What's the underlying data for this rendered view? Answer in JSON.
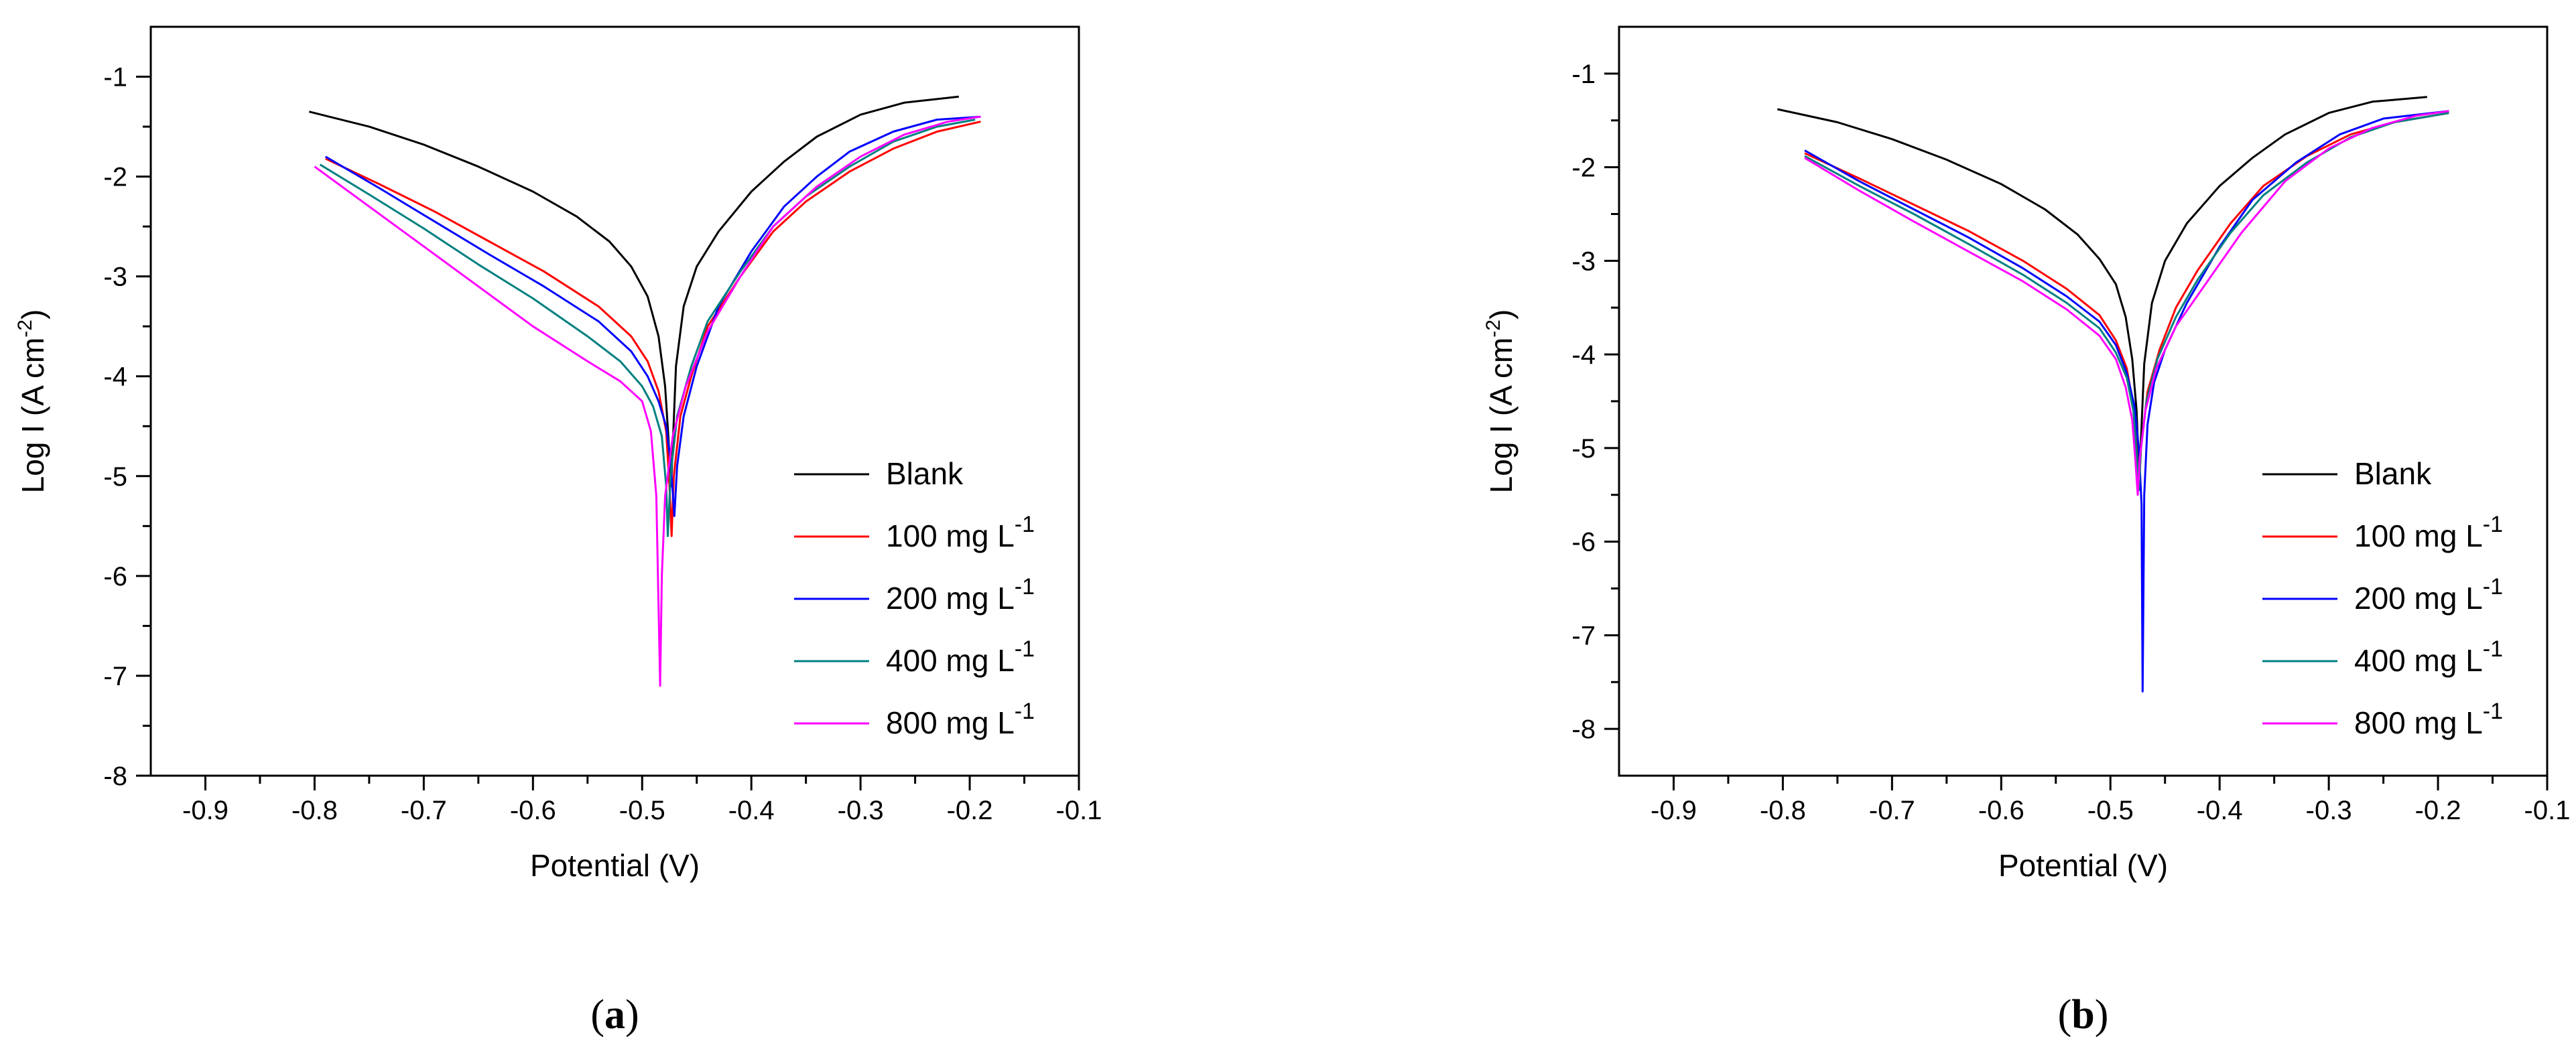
{
  "chart_data": [
    {
      "type": "line",
      "panel_label": {
        "open": "(",
        "letter": "a",
        "close": ")"
      },
      "xlabel": "Potential (V)",
      "ylabel": {
        "main": "Log I (A cm",
        "sup": "-2",
        "close": ")"
      },
      "xlim": [
        -0.95,
        -0.1
      ],
      "ylim": [
        -8,
        -0.5
      ],
      "xticks": [
        "-0.9",
        "-0.8",
        "-0.7",
        "-0.6",
        "-0.5",
        "-0.4",
        "-0.3",
        "-0.2",
        "-0.1"
      ],
      "yticks": [
        "-8",
        "-7",
        "-6",
        "-5",
        "-4",
        "-3",
        "-2",
        "-1"
      ],
      "xtick_values": [
        -0.9,
        -0.8,
        -0.7,
        -0.6,
        -0.5,
        -0.4,
        -0.3,
        -0.2,
        -0.1
      ],
      "ytick_values": [
        -8,
        -7,
        -6,
        -5,
        -4,
        -3,
        -2,
        -1
      ],
      "legend_position": "lower-right",
      "series": [
        {
          "name": "Blank",
          "sup": "",
          "color": "#000000",
          "x": [
            -0.805,
            -0.75,
            -0.7,
            -0.65,
            -0.6,
            -0.56,
            -0.53,
            -0.51,
            -0.495,
            -0.485,
            -0.479,
            -0.476,
            -0.4735,
            -0.472,
            -0.469,
            -0.462,
            -0.45,
            -0.43,
            -0.4,
            -0.37,
            -0.34,
            -0.3,
            -0.26,
            -0.21
          ],
          "y": [
            -1.35,
            -1.5,
            -1.68,
            -1.9,
            -2.15,
            -2.4,
            -2.65,
            -2.9,
            -3.2,
            -3.6,
            -4.1,
            -4.6,
            -5.1,
            -4.7,
            -3.9,
            -3.3,
            -2.9,
            -2.55,
            -2.15,
            -1.85,
            -1.6,
            -1.38,
            -1.26,
            -1.2
          ]
        },
        {
          "name": "100 mg L",
          "sup": "-1",
          "color": "#ff0000",
          "x": [
            -0.79,
            -0.74,
            -0.69,
            -0.64,
            -0.59,
            -0.54,
            -0.51,
            -0.495,
            -0.485,
            -0.478,
            -0.475,
            -0.473,
            -0.471,
            -0.465,
            -0.455,
            -0.44,
            -0.41,
            -0.38,
            -0.35,
            -0.31,
            -0.27,
            -0.23,
            -0.19
          ],
          "y": [
            -1.82,
            -2.08,
            -2.35,
            -2.65,
            -2.95,
            -3.3,
            -3.6,
            -3.85,
            -4.15,
            -4.55,
            -5.1,
            -5.6,
            -5.0,
            -4.4,
            -4.0,
            -3.5,
            -3.0,
            -2.55,
            -2.25,
            -1.95,
            -1.72,
            -1.55,
            -1.45
          ]
        },
        {
          "name": "200 mg L",
          "sup": "-1",
          "color": "#0000ff",
          "x": [
            -0.79,
            -0.74,
            -0.69,
            -0.64,
            -0.59,
            -0.54,
            -0.51,
            -0.495,
            -0.485,
            -0.478,
            -0.474,
            -0.4705,
            -0.468,
            -0.462,
            -0.45,
            -0.43,
            -0.4,
            -0.37,
            -0.34,
            -0.31,
            -0.27,
            -0.23,
            -0.19
          ],
          "y": [
            -1.8,
            -2.12,
            -2.45,
            -2.78,
            -3.1,
            -3.45,
            -3.75,
            -4.0,
            -4.25,
            -4.5,
            -4.85,
            -5.4,
            -4.9,
            -4.4,
            -3.9,
            -3.3,
            -2.75,
            -2.3,
            -2.0,
            -1.75,
            -1.55,
            -1.43,
            -1.4
          ]
        },
        {
          "name": "400 mg L",
          "sup": "-1",
          "color": "#008080",
          "x": [
            -0.795,
            -0.75,
            -0.7,
            -0.65,
            -0.6,
            -0.55,
            -0.52,
            -0.5,
            -0.49,
            -0.482,
            -0.478,
            -0.4765,
            -0.474,
            -0.468,
            -0.455,
            -0.44,
            -0.41,
            -0.38,
            -0.35,
            -0.31,
            -0.27,
            -0.23,
            -0.195
          ],
          "y": [
            -1.88,
            -2.18,
            -2.52,
            -2.88,
            -3.22,
            -3.6,
            -3.85,
            -4.1,
            -4.3,
            -4.6,
            -5.1,
            -5.6,
            -5.0,
            -4.4,
            -3.9,
            -3.45,
            -2.95,
            -2.5,
            -2.2,
            -1.9,
            -1.65,
            -1.5,
            -1.43
          ]
        },
        {
          "name": "800 mg L",
          "sup": "-1",
          "color": "#ff00ff",
          "x": [
            -0.8,
            -0.75,
            -0.7,
            -0.65,
            -0.6,
            -0.55,
            -0.52,
            -0.5,
            -0.492,
            -0.487,
            -0.485,
            -0.4835,
            -0.482,
            -0.479,
            -0.472,
            -0.46,
            -0.44,
            -0.41,
            -0.38,
            -0.34,
            -0.3,
            -0.26,
            -0.22,
            -0.19
          ],
          "y": [
            -1.9,
            -2.3,
            -2.7,
            -3.1,
            -3.5,
            -3.85,
            -4.05,
            -4.25,
            -4.55,
            -5.2,
            -6.3,
            -7.1,
            -6.0,
            -5.2,
            -4.6,
            -4.1,
            -3.55,
            -3.0,
            -2.5,
            -2.1,
            -1.8,
            -1.58,
            -1.45,
            -1.4
          ]
        }
      ]
    },
    {
      "type": "line",
      "panel_label": {
        "open": "(",
        "letter": "b",
        "close": ")"
      },
      "xlabel": "Potential (V)",
      "ylabel": {
        "main": "Log I (A cm",
        "sup": "-2",
        "close": ")"
      },
      "xlim": [
        -0.95,
        -0.1
      ],
      "ylim": [
        -8.5,
        -0.5
      ],
      "xticks": [
        "-0.9",
        "-0.8",
        "-0.7",
        "-0.6",
        "-0.5",
        "-0.4",
        "-0.3",
        "-0.2",
        "-0.1"
      ],
      "yticks": [
        "-8",
        "-7",
        "-6",
        "-5",
        "-4",
        "-3",
        "-2",
        "-1"
      ],
      "xtick_values": [
        -0.9,
        -0.8,
        -0.7,
        -0.6,
        -0.5,
        -0.4,
        -0.3,
        -0.2,
        -0.1
      ],
      "ytick_values": [
        -8,
        -7,
        -6,
        -5,
        -4,
        -3,
        -2,
        -1
      ],
      "legend_position": "lower-right",
      "series": [
        {
          "name": "Blank",
          "sup": "",
          "color": "#000000",
          "x": [
            -0.805,
            -0.75,
            -0.7,
            -0.65,
            -0.6,
            -0.56,
            -0.53,
            -0.51,
            -0.495,
            -0.486,
            -0.48,
            -0.476,
            -0.4735,
            -0.472,
            -0.469,
            -0.462,
            -0.45,
            -0.43,
            -0.4,
            -0.37,
            -0.34,
            -0.3,
            -0.26,
            -0.21
          ],
          "y": [
            -1.38,
            -1.52,
            -1.7,
            -1.92,
            -2.18,
            -2.45,
            -2.72,
            -2.98,
            -3.25,
            -3.6,
            -4.05,
            -4.6,
            -5.35,
            -4.9,
            -4.1,
            -3.45,
            -3.0,
            -2.6,
            -2.2,
            -1.9,
            -1.65,
            -1.42,
            -1.3,
            -1.25
          ]
        },
        {
          "name": "100 mg L",
          "sup": "-1",
          "color": "#ff0000",
          "x": [
            -0.78,
            -0.73,
            -0.68,
            -0.63,
            -0.58,
            -0.54,
            -0.51,
            -0.495,
            -0.485,
            -0.479,
            -0.476,
            -0.474,
            -0.472,
            -0.466,
            -0.455,
            -0.44,
            -0.42,
            -0.39,
            -0.36,
            -0.32,
            -0.28,
            -0.24,
            -0.19
          ],
          "y": [
            -1.85,
            -2.12,
            -2.4,
            -2.68,
            -3.0,
            -3.3,
            -3.58,
            -3.85,
            -4.15,
            -4.55,
            -5.0,
            -5.45,
            -5.0,
            -4.4,
            -3.95,
            -3.5,
            -3.1,
            -2.6,
            -2.2,
            -1.88,
            -1.65,
            -1.52,
            -1.42
          ]
        },
        {
          "name": "200 mg L",
          "sup": "-1",
          "color": "#0000ff",
          "x": [
            -0.78,
            -0.73,
            -0.68,
            -0.63,
            -0.58,
            -0.54,
            -0.51,
            -0.495,
            -0.485,
            -0.478,
            -0.474,
            -0.4715,
            -0.4705,
            -0.469,
            -0.466,
            -0.46,
            -0.45,
            -0.43,
            -0.4,
            -0.37,
            -0.33,
            -0.29,
            -0.25,
            -0.19
          ],
          "y": [
            -1.82,
            -2.15,
            -2.45,
            -2.75,
            -3.08,
            -3.38,
            -3.65,
            -3.9,
            -4.2,
            -4.55,
            -5.0,
            -5.6,
            -7.6,
            -5.5,
            -4.75,
            -4.3,
            -3.95,
            -3.45,
            -2.85,
            -2.35,
            -1.95,
            -1.65,
            -1.48,
            -1.4
          ]
        },
        {
          "name": "400 mg L",
          "sup": "-1",
          "color": "#008080",
          "x": [
            -0.78,
            -0.73,
            -0.68,
            -0.63,
            -0.58,
            -0.54,
            -0.51,
            -0.495,
            -0.485,
            -0.479,
            -0.476,
            -0.474,
            -0.472,
            -0.467,
            -0.457,
            -0.44,
            -0.42,
            -0.39,
            -0.36,
            -0.32,
            -0.28,
            -0.24,
            -0.19
          ],
          "y": [
            -1.88,
            -2.2,
            -2.5,
            -2.82,
            -3.15,
            -3.45,
            -3.72,
            -3.98,
            -4.25,
            -4.6,
            -5.05,
            -5.45,
            -5.0,
            -4.5,
            -4.05,
            -3.6,
            -3.2,
            -2.7,
            -2.3,
            -1.95,
            -1.68,
            -1.52,
            -1.42
          ]
        },
        {
          "name": "800 mg L",
          "sup": "-1",
          "color": "#ff00ff",
          "x": [
            -0.78,
            -0.73,
            -0.68,
            -0.63,
            -0.58,
            -0.54,
            -0.51,
            -0.495,
            -0.486,
            -0.48,
            -0.477,
            -0.475,
            -0.473,
            -0.468,
            -0.458,
            -0.44,
            -0.41,
            -0.38,
            -0.34,
            -0.3,
            -0.26,
            -0.22,
            -0.19
          ],
          "y": [
            -1.9,
            -2.25,
            -2.58,
            -2.9,
            -3.22,
            -3.52,
            -3.8,
            -4.05,
            -4.35,
            -4.7,
            -5.15,
            -5.5,
            -5.1,
            -4.6,
            -4.15,
            -3.7,
            -3.2,
            -2.7,
            -2.15,
            -1.8,
            -1.58,
            -1.45,
            -1.4
          ]
        }
      ]
    }
  ]
}
